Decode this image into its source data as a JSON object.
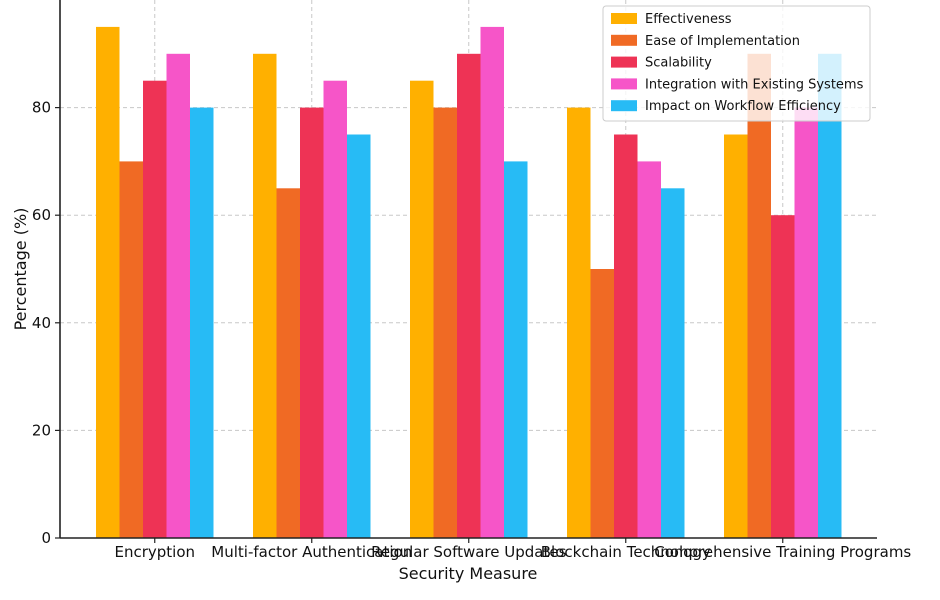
{
  "chart_data": {
    "type": "bar",
    "title": "",
    "xlabel": "Security Measure",
    "ylabel": "Percentage (%)",
    "categories": [
      "Encryption",
      "Multi-factor Authentication",
      "Regular Software Updates",
      "Blockchain Technology",
      "Comprehensive Training Programs"
    ],
    "series": [
      {
        "name": "Effectiveness",
        "color": "#FFB000",
        "values": [
          95,
          90,
          85,
          80,
          75
        ]
      },
      {
        "name": "Ease of Implementation",
        "color": "#F06A24",
        "values": [
          70,
          65,
          80,
          50,
          90
        ]
      },
      {
        "name": "Scalability",
        "color": "#EE3355",
        "values": [
          85,
          80,
          90,
          75,
          60
        ]
      },
      {
        "name": "Integration with Existing Systems",
        "color": "#F655C8",
        "values": [
          90,
          85,
          95,
          70,
          80
        ]
      },
      {
        "name": "Impact on Workflow Efficiency",
        "color": "#27BBF5",
        "values": [
          80,
          75,
          70,
          65,
          90
        ]
      }
    ],
    "yticks": [
      0,
      20,
      40,
      60,
      80
    ],
    "ylim": [
      0,
      100
    ],
    "grid": true,
    "legend_position": "top-right"
  }
}
